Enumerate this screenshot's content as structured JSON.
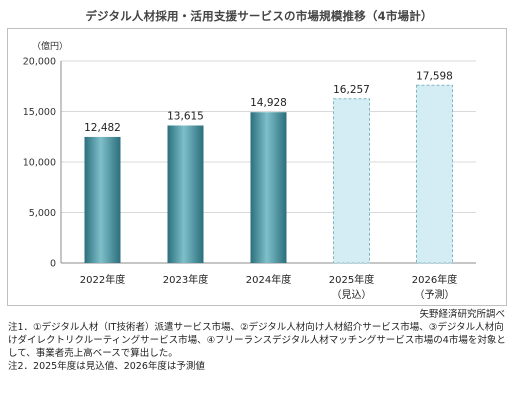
{
  "chart_data": {
    "type": "bar",
    "title": "デジタル人材採用・活用支援サービスの市場規模推移（4市場計）",
    "ylabel": "（億円）",
    "ylim": [
      0,
      20000
    ],
    "yticks": [
      "0",
      "5,000",
      "10,000",
      "15,000",
      "20,000"
    ],
    "grid": true,
    "categories": [
      "2022年度",
      "2023年度",
      "2024年度",
      "2025年度",
      "2026年度"
    ],
    "category_sublabels": [
      "",
      "",
      "",
      "（見込）",
      "（予測）"
    ],
    "values": [
      12482,
      13615,
      14928,
      16257,
      17598
    ],
    "value_labels": [
      "12,482",
      "13,615",
      "14,928",
      "16,257",
      "17,598"
    ],
    "bar_styles": [
      "actual",
      "actual",
      "actual",
      "forecast",
      "forecast"
    ],
    "source": "矢野経済研究所調べ",
    "colors": {
      "actual_dark": "#2f7f8c",
      "actual_light": "#8cc6d0",
      "forecast_fill": "#d4edf4",
      "forecast_border": "#7fb7c5"
    }
  },
  "notes": [
    "注1．①デジタル人材（IT技術者）派遣サービス市場、②デジタル人材向け人材紹介サービス市場、③デジタル人材向けダイレクトリクルーティングサービス市場、④フリーランスデジタル人材マッチングサービス市場の4市場を対象として、事業者売上高ベースで算出した。",
    "注2．2025年度は見込値、2026年度は予測値"
  ]
}
